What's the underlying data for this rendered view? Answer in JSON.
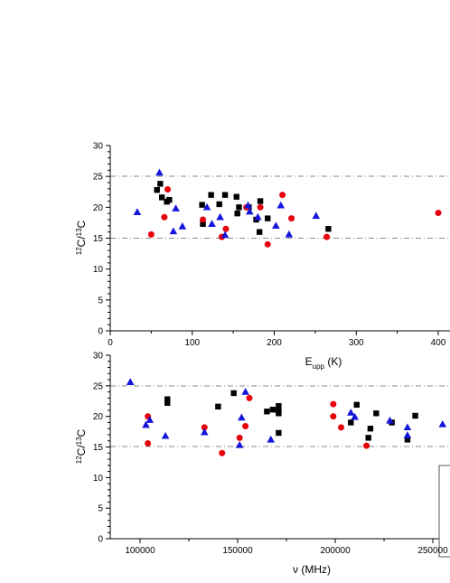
{
  "colors": {
    "series_black": "#000000",
    "series_red": "#e8000b",
    "series_blue": "#1414dc",
    "reference_line": "#888888"
  },
  "chart_data": [
    {
      "type": "scatter",
      "xlabel": "E_upp (K)",
      "ylabel": "12C/13C",
      "xlim": [
        0,
        400
      ],
      "ylim": [
        0,
        30
      ],
      "x_ticks": [
        "0",
        "100",
        "200",
        "300",
        "400"
      ],
      "y_ticks": [
        "0",
        "5",
        "10",
        "15",
        "20",
        "25",
        "30"
      ],
      "reference_lines": [
        15,
        25
      ],
      "grid": false,
      "series": [
        {
          "marker": "square",
          "color": "#000000",
          "points": [
            [
              57,
              22.8
            ],
            [
              61,
              23.8
            ],
            [
              63,
              21.6
            ],
            [
              69,
              20.9
            ],
            [
              72,
              21.2
            ],
            [
              112,
              20.4
            ],
            [
              113,
              17.3
            ],
            [
              123,
              22
            ],
            [
              133,
              20.5
            ],
            [
              140,
              22
            ],
            [
              154,
              21.7
            ],
            [
              155,
              19
            ],
            [
              157,
              20
            ],
            [
              169,
              20
            ],
            [
              178,
              18
            ],
            [
              182,
              16
            ],
            [
              183,
              21
            ],
            [
              192,
              18.2
            ],
            [
              266,
              16.5
            ]
          ]
        },
        {
          "marker": "circle",
          "color": "#e8000b",
          "points": [
            [
              50,
              15.6
            ],
            [
              66,
              18.4
            ],
            [
              70,
              22.9
            ],
            [
              113,
              18
            ],
            [
              136,
              15.2
            ],
            [
              141,
              16.5
            ],
            [
              166,
              20
            ],
            [
              183,
              20
            ],
            [
              192,
              14
            ],
            [
              210,
              22
            ],
            [
              221,
              18.2
            ],
            [
              264,
              15.2
            ],
            [
              400,
              19.1
            ]
          ]
        },
        {
          "marker": "triangle",
          "color": "#1414dc",
          "points": [
            [
              33,
              19.2
            ],
            [
              60,
              25.6
            ],
            [
              77,
              16.1
            ],
            [
              80,
              19.8
            ],
            [
              88,
              16.9
            ],
            [
              118,
              20
            ],
            [
              124,
              17.3
            ],
            [
              134,
              18.4
            ],
            [
              140,
              15.5
            ],
            [
              168,
              20.3
            ],
            [
              170,
              19.3
            ],
            [
              180,
              18.4
            ],
            [
              202,
              17
            ],
            [
              208,
              20.3
            ],
            [
              218,
              15.6
            ],
            [
              251,
              18.6
            ]
          ]
        }
      ]
    },
    {
      "type": "scatter",
      "xlabel": "ν (MHz)",
      "ylabel": "12C/13C",
      "xlim": [
        80000,
        260000
      ],
      "ylim": [
        0,
        30
      ],
      "x_ticks": [
        "100000",
        "150000",
        "200000",
        "250000"
      ],
      "y_ticks": [
        "0",
        "5",
        "10",
        "15",
        "20",
        "25",
        "30"
      ],
      "reference_lines": [
        15,
        25
      ],
      "grid": false,
      "series": [
        {
          "marker": "square",
          "color": "#000000",
          "points": [
            [
              114000,
              22.8
            ],
            [
              114000,
              22.2
            ],
            [
              140000,
              21.6
            ],
            [
              148000,
              23.8
            ],
            [
              165000,
              20.8
            ],
            [
              168000,
              21.1
            ],
            [
              171000,
              21.7
            ],
            [
              171000,
              20.5
            ],
            [
              171000,
              17.3
            ],
            [
              171000,
              20.9
            ],
            [
              208000,
              19
            ],
            [
              211000,
              21.9
            ],
            [
              217000,
              16.5
            ],
            [
              218000,
              18
            ],
            [
              221000,
              20.5
            ],
            [
              229000,
              19
            ],
            [
              237000,
              16.2
            ],
            [
              241000,
              20.1
            ]
          ]
        },
        {
          "marker": "circle",
          "color": "#e8000b",
          "points": [
            [
              104000,
              20
            ],
            [
              104000,
              15.6
            ],
            [
              133000,
              18.2
            ],
            [
              142000,
              14
            ],
            [
              151000,
              16.5
            ],
            [
              154000,
              18.4
            ],
            [
              156000,
              23
            ],
            [
              199000,
              20
            ],
            [
              199000,
              22
            ],
            [
              203000,
              18.2
            ],
            [
              216000,
              15.2
            ]
          ]
        },
        {
          "marker": "triangle",
          "color": "#1414dc",
          "points": [
            [
              95000,
              25.6
            ],
            [
              103000,
              18.6
            ],
            [
              105000,
              19.4
            ],
            [
              113000,
              16.8
            ],
            [
              133000,
              17.4
            ],
            [
              151000,
              15.3
            ],
            [
              152000,
              19.8
            ],
            [
              154000,
              24
            ],
            [
              167000,
              16.2
            ],
            [
              208000,
              20.6
            ],
            [
              210000,
              19.9
            ],
            [
              228000,
              19.3
            ],
            [
              237000,
              18.2
            ],
            [
              237000,
              16.9
            ],
            [
              255000,
              18.7
            ]
          ]
        }
      ]
    }
  ]
}
